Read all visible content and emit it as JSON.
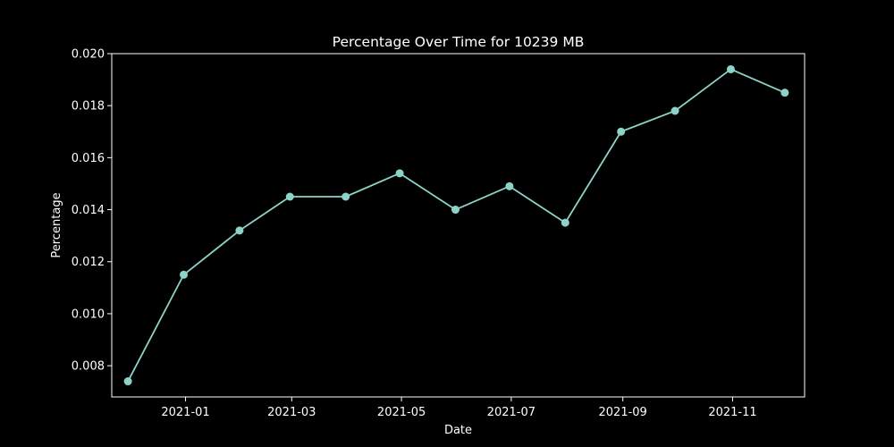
{
  "chart_data": {
    "type": "line",
    "title": "Percentage Over Time for 10239 MB",
    "xlabel": "Date",
    "ylabel": "Percentage",
    "x_type": "date",
    "xlim": [
      "2020-11-21",
      "2021-12-11"
    ],
    "ylim": [
      0.0068,
      0.02
    ],
    "x_ticks": [
      {
        "date": "2021-01-01",
        "label": "2021-01"
      },
      {
        "date": "2021-03-01",
        "label": "2021-03"
      },
      {
        "date": "2021-05-01",
        "label": "2021-05"
      },
      {
        "date": "2021-07-01",
        "label": "2021-07"
      },
      {
        "date": "2021-09-01",
        "label": "2021-09"
      },
      {
        "date": "2021-11-01",
        "label": "2021-11"
      }
    ],
    "y_ticks": [
      {
        "value": 0.008,
        "label": "0.008"
      },
      {
        "value": 0.01,
        "label": "0.010"
      },
      {
        "value": 0.012,
        "label": "0.012"
      },
      {
        "value": 0.014,
        "label": "0.014"
      },
      {
        "value": 0.016,
        "label": "0.016"
      },
      {
        "value": 0.018,
        "label": "0.018"
      },
      {
        "value": 0.02,
        "label": "0.020"
      }
    ],
    "grid": false,
    "series": [
      {
        "color": "#8dd3c7",
        "marker": "circle",
        "points": [
          {
            "x": "2020-11-30",
            "y": 0.0074
          },
          {
            "x": "2020-12-31",
            "y": 0.0115
          },
          {
            "x": "2021-01-31",
            "y": 0.0132
          },
          {
            "x": "2021-02-28",
            "y": 0.0145
          },
          {
            "x": "2021-03-31",
            "y": 0.0145
          },
          {
            "x": "2021-04-30",
            "y": 0.0154
          },
          {
            "x": "2021-05-31",
            "y": 0.014
          },
          {
            "x": "2021-06-30",
            "y": 0.0149
          },
          {
            "x": "2021-07-31",
            "y": 0.0135
          },
          {
            "x": "2021-08-31",
            "y": 0.017
          },
          {
            "x": "2021-09-30",
            "y": 0.0178
          },
          {
            "x": "2021-10-31",
            "y": 0.0194
          },
          {
            "x": "2021-11-30",
            "y": 0.0185
          }
        ]
      }
    ]
  },
  "colors": {
    "background": "#000000",
    "axes": "#ffffff",
    "text": "#ffffff"
  }
}
